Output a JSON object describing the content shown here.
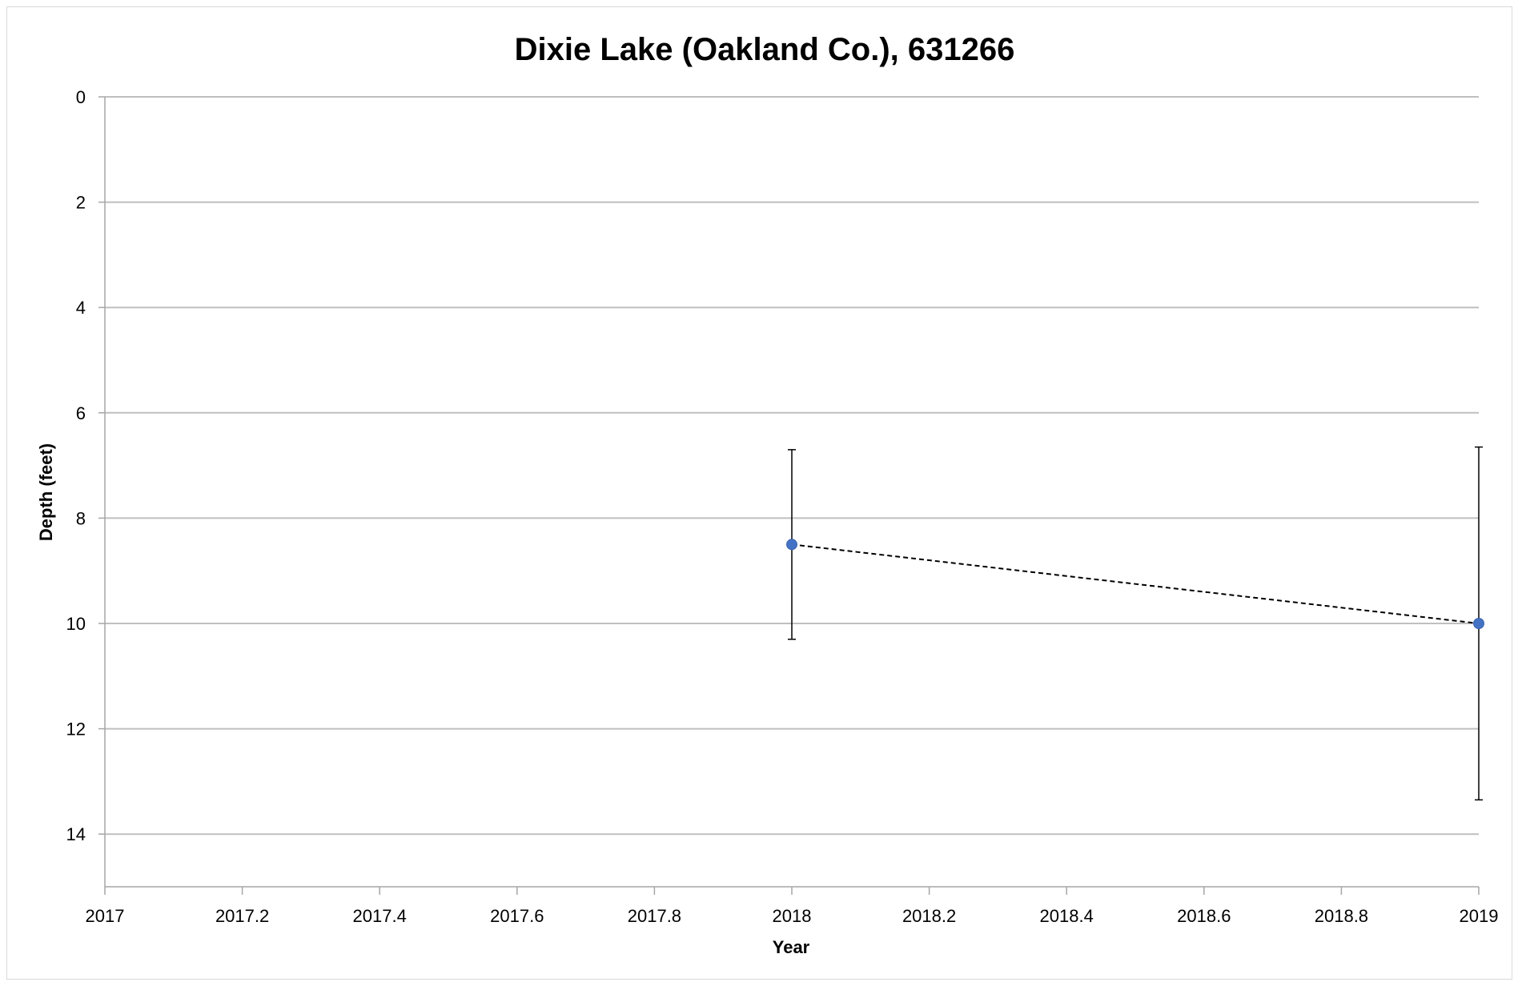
{
  "chart_data": {
    "type": "scatter",
    "title": "Dixie Lake (Oakland Co.), 631266",
    "xlabel": "Year",
    "ylabel": "Depth (feet)",
    "xlim": [
      2017,
      2019
    ],
    "ylim": [
      0,
      15
    ],
    "y_reversed": true,
    "x_ticks": [
      "2017",
      "2017.2",
      "2017.4",
      "2017.6",
      "2017.8",
      "2018",
      "2018.2",
      "2018.4",
      "2018.6",
      "2018.8",
      "2019"
    ],
    "y_ticks": [
      "0",
      "2",
      "4",
      "6",
      "8",
      "10",
      "12",
      "14"
    ],
    "grid": "horizontal",
    "series": [
      {
        "x": [
          2018,
          2019
        ],
        "y": [
          8.5,
          10.0
        ],
        "error_low": [
          6.7,
          6.65
        ],
        "error_high": [
          10.3,
          13.35
        ],
        "marker_color": "#4472c4",
        "line_style": "dashed",
        "line_color": "#000000"
      }
    ]
  }
}
